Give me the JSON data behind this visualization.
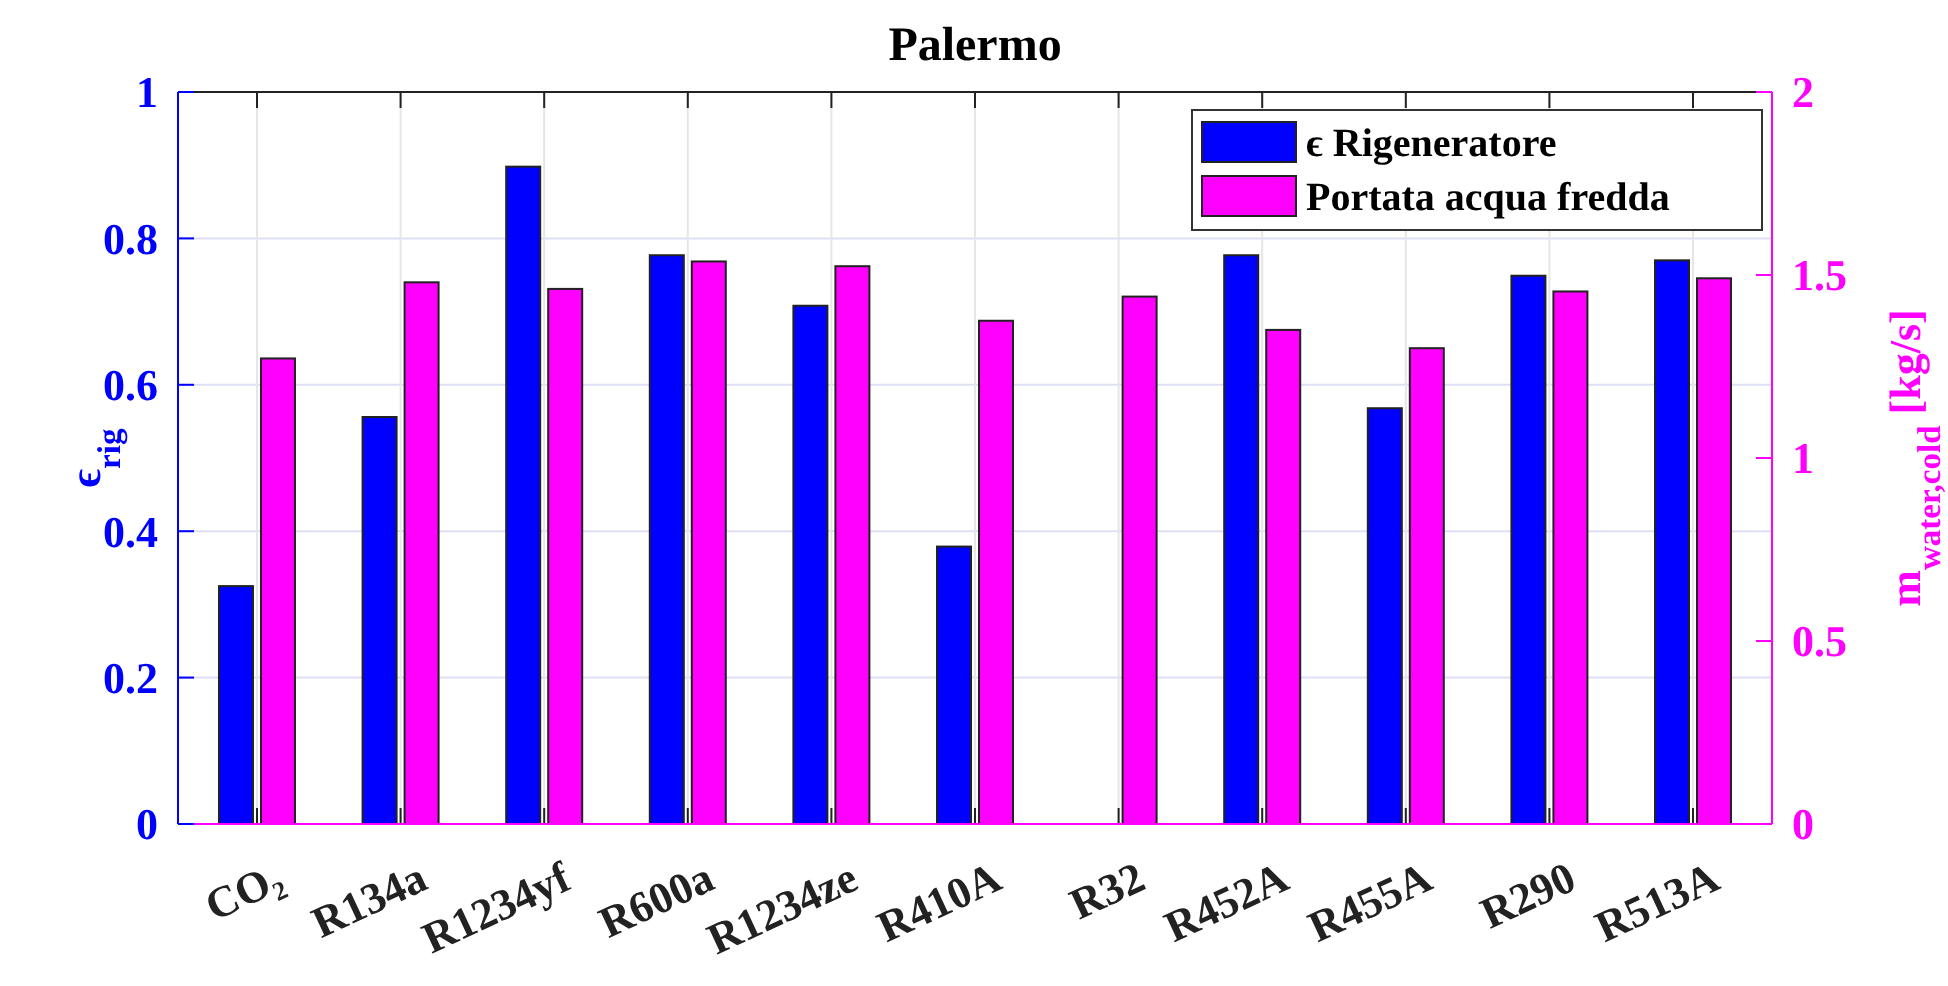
{
  "chart_data": {
    "type": "bar",
    "title": "Palermo",
    "ylabel": "ϵ$_{rig}$",
    "y2label": "m$_{water,cold}$ [kg/s]",
    "categories": [
      "CO₂",
      "R134a",
      "R1234yf",
      "R600a",
      "R1234ze",
      "R410A",
      "R32",
      "R452A",
      "R455A",
      "R290",
      "R513A"
    ],
    "series": [
      {
        "name": "ϵ Rigeneratore",
        "color": "#0000ff",
        "values": [
          0.325,
          0.556,
          0.898,
          0.777,
          0.708,
          0.379,
          0,
          0.777,
          0.568,
          0.749,
          0.77
        ]
      },
      {
        "name": "Portata acqua fredda",
        "color": "#ff00ff",
        "axis": "y2",
        "values": [
          1.272,
          1.48,
          1.462,
          1.537,
          1.524,
          1.375,
          1.441,
          1.35,
          1.3,
          1.455,
          1.491
        ]
      }
    ],
    "ylim": [
      0,
      1
    ],
    "yticks": [
      0,
      0.2,
      0.4,
      0.6,
      0.8,
      1
    ],
    "y2lim": [
      0,
      2
    ],
    "y2ticks": [
      0,
      0.5,
      1,
      1.5,
      2
    ],
    "grid": true,
    "legend": "top right"
  }
}
